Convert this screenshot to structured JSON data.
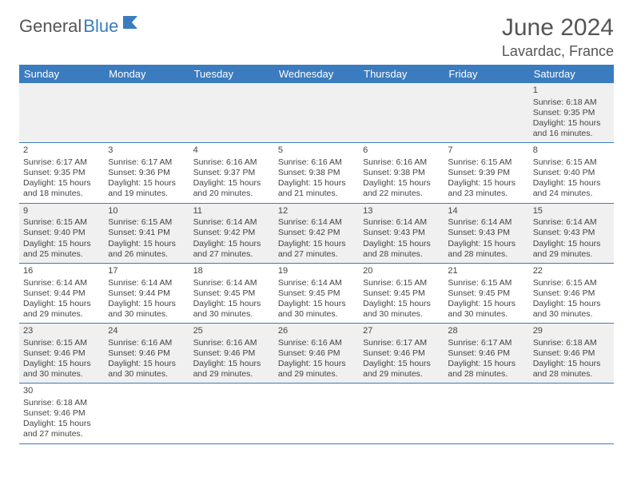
{
  "logo": {
    "text1": "General",
    "text2": "Blue"
  },
  "title": "June 2024",
  "location": "Lavardac, France",
  "colors": {
    "header_bg": "#3a7cbf",
    "header_text": "#ffffff",
    "row_alt_bg": "#f0f0f0",
    "border": "#3a7cbf",
    "text": "#444444"
  },
  "daysOfWeek": [
    "Sunday",
    "Monday",
    "Tuesday",
    "Wednesday",
    "Thursday",
    "Friday",
    "Saturday"
  ],
  "weeks": [
    [
      null,
      null,
      null,
      null,
      null,
      null,
      {
        "n": "1",
        "sr": "Sunrise: 6:18 AM",
        "ss": "Sunset: 9:35 PM",
        "d1": "Daylight: 15 hours",
        "d2": "and 16 minutes."
      }
    ],
    [
      {
        "n": "2",
        "sr": "Sunrise: 6:17 AM",
        "ss": "Sunset: 9:35 PM",
        "d1": "Daylight: 15 hours",
        "d2": "and 18 minutes."
      },
      {
        "n": "3",
        "sr": "Sunrise: 6:17 AM",
        "ss": "Sunset: 9:36 PM",
        "d1": "Daylight: 15 hours",
        "d2": "and 19 minutes."
      },
      {
        "n": "4",
        "sr": "Sunrise: 6:16 AM",
        "ss": "Sunset: 9:37 PM",
        "d1": "Daylight: 15 hours",
        "d2": "and 20 minutes."
      },
      {
        "n": "5",
        "sr": "Sunrise: 6:16 AM",
        "ss": "Sunset: 9:38 PM",
        "d1": "Daylight: 15 hours",
        "d2": "and 21 minutes."
      },
      {
        "n": "6",
        "sr": "Sunrise: 6:16 AM",
        "ss": "Sunset: 9:38 PM",
        "d1": "Daylight: 15 hours",
        "d2": "and 22 minutes."
      },
      {
        "n": "7",
        "sr": "Sunrise: 6:15 AM",
        "ss": "Sunset: 9:39 PM",
        "d1": "Daylight: 15 hours",
        "d2": "and 23 minutes."
      },
      {
        "n": "8",
        "sr": "Sunrise: 6:15 AM",
        "ss": "Sunset: 9:40 PM",
        "d1": "Daylight: 15 hours",
        "d2": "and 24 minutes."
      }
    ],
    [
      {
        "n": "9",
        "sr": "Sunrise: 6:15 AM",
        "ss": "Sunset: 9:40 PM",
        "d1": "Daylight: 15 hours",
        "d2": "and 25 minutes."
      },
      {
        "n": "10",
        "sr": "Sunrise: 6:15 AM",
        "ss": "Sunset: 9:41 PM",
        "d1": "Daylight: 15 hours",
        "d2": "and 26 minutes."
      },
      {
        "n": "11",
        "sr": "Sunrise: 6:14 AM",
        "ss": "Sunset: 9:42 PM",
        "d1": "Daylight: 15 hours",
        "d2": "and 27 minutes."
      },
      {
        "n": "12",
        "sr": "Sunrise: 6:14 AM",
        "ss": "Sunset: 9:42 PM",
        "d1": "Daylight: 15 hours",
        "d2": "and 27 minutes."
      },
      {
        "n": "13",
        "sr": "Sunrise: 6:14 AM",
        "ss": "Sunset: 9:43 PM",
        "d1": "Daylight: 15 hours",
        "d2": "and 28 minutes."
      },
      {
        "n": "14",
        "sr": "Sunrise: 6:14 AM",
        "ss": "Sunset: 9:43 PM",
        "d1": "Daylight: 15 hours",
        "d2": "and 28 minutes."
      },
      {
        "n": "15",
        "sr": "Sunrise: 6:14 AM",
        "ss": "Sunset: 9:43 PM",
        "d1": "Daylight: 15 hours",
        "d2": "and 29 minutes."
      }
    ],
    [
      {
        "n": "16",
        "sr": "Sunrise: 6:14 AM",
        "ss": "Sunset: 9:44 PM",
        "d1": "Daylight: 15 hours",
        "d2": "and 29 minutes."
      },
      {
        "n": "17",
        "sr": "Sunrise: 6:14 AM",
        "ss": "Sunset: 9:44 PM",
        "d1": "Daylight: 15 hours",
        "d2": "and 30 minutes."
      },
      {
        "n": "18",
        "sr": "Sunrise: 6:14 AM",
        "ss": "Sunset: 9:45 PM",
        "d1": "Daylight: 15 hours",
        "d2": "and 30 minutes."
      },
      {
        "n": "19",
        "sr": "Sunrise: 6:14 AM",
        "ss": "Sunset: 9:45 PM",
        "d1": "Daylight: 15 hours",
        "d2": "and 30 minutes."
      },
      {
        "n": "20",
        "sr": "Sunrise: 6:15 AM",
        "ss": "Sunset: 9:45 PM",
        "d1": "Daylight: 15 hours",
        "d2": "and 30 minutes."
      },
      {
        "n": "21",
        "sr": "Sunrise: 6:15 AM",
        "ss": "Sunset: 9:45 PM",
        "d1": "Daylight: 15 hours",
        "d2": "and 30 minutes."
      },
      {
        "n": "22",
        "sr": "Sunrise: 6:15 AM",
        "ss": "Sunset: 9:46 PM",
        "d1": "Daylight: 15 hours",
        "d2": "and 30 minutes."
      }
    ],
    [
      {
        "n": "23",
        "sr": "Sunrise: 6:15 AM",
        "ss": "Sunset: 9:46 PM",
        "d1": "Daylight: 15 hours",
        "d2": "and 30 minutes."
      },
      {
        "n": "24",
        "sr": "Sunrise: 6:16 AM",
        "ss": "Sunset: 9:46 PM",
        "d1": "Daylight: 15 hours",
        "d2": "and 30 minutes."
      },
      {
        "n": "25",
        "sr": "Sunrise: 6:16 AM",
        "ss": "Sunset: 9:46 PM",
        "d1": "Daylight: 15 hours",
        "d2": "and 29 minutes."
      },
      {
        "n": "26",
        "sr": "Sunrise: 6:16 AM",
        "ss": "Sunset: 9:46 PM",
        "d1": "Daylight: 15 hours",
        "d2": "and 29 minutes."
      },
      {
        "n": "27",
        "sr": "Sunrise: 6:17 AM",
        "ss": "Sunset: 9:46 PM",
        "d1": "Daylight: 15 hours",
        "d2": "and 29 minutes."
      },
      {
        "n": "28",
        "sr": "Sunrise: 6:17 AM",
        "ss": "Sunset: 9:46 PM",
        "d1": "Daylight: 15 hours",
        "d2": "and 28 minutes."
      },
      {
        "n": "29",
        "sr": "Sunrise: 6:18 AM",
        "ss": "Sunset: 9:46 PM",
        "d1": "Daylight: 15 hours",
        "d2": "and 28 minutes."
      }
    ],
    [
      {
        "n": "30",
        "sr": "Sunrise: 6:18 AM",
        "ss": "Sunset: 9:46 PM",
        "d1": "Daylight: 15 hours",
        "d2": "and 27 minutes."
      },
      null,
      null,
      null,
      null,
      null,
      null
    ]
  ]
}
